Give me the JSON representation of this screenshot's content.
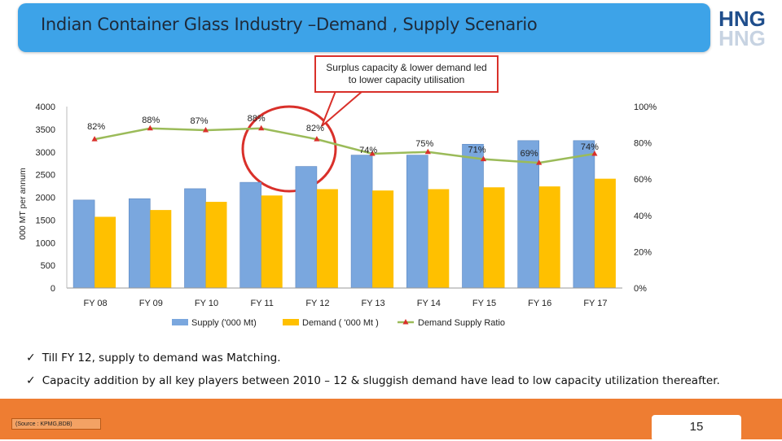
{
  "title": "Indian Container Glass Industry –Demand , Supply Scenario",
  "logo": {
    "top": "HNG",
    "bottom": "HNG"
  },
  "callout": {
    "line1": "Surplus capacity & lower demand led",
    "line2": "to lower capacity utilisation"
  },
  "colors": {
    "supply": "#7aa7de",
    "demand": "#ffc000",
    "ratio": "#9bbb59",
    "ratio_marker": "#d9302a",
    "highlight": "#d9302a"
  },
  "chart_data": {
    "type": "bar",
    "categories": [
      "FY 08",
      "FY 09",
      "FY 10",
      "FY 11",
      "FY 12",
      "FY 13",
      "FY 14",
      "FY 15",
      "FY 16",
      "FY 17"
    ],
    "series": [
      {
        "name": "Supply  ('000 Mt)",
        "type": "bar",
        "axis": "left",
        "values": [
          1940,
          1970,
          2190,
          2330,
          2680,
          2930,
          2930,
          3170,
          3250,
          3250
        ]
      },
      {
        "name": "Demand ( '000 Mt )",
        "type": "bar",
        "axis": "left",
        "values": [
          1570,
          1720,
          1900,
          2040,
          2180,
          2150,
          2180,
          2220,
          2240,
          2410
        ]
      },
      {
        "name": "Demand Supply Ratio",
        "type": "line",
        "axis": "right",
        "values": [
          82,
          88,
          87,
          88,
          82,
          74,
          75,
          71,
          69,
          74
        ],
        "labels": [
          "82%",
          "88%",
          "87%",
          "88%",
          "82%",
          "74%",
          "75%",
          "71%",
          "69%",
          "74%"
        ]
      }
    ],
    "ylabel": "000 MT  per  annum",
    "ylim": [
      0,
      4000
    ],
    "yticks": [
      "0",
      "500",
      "1000",
      "1500",
      "2000",
      "2500",
      "3000",
      "3500",
      "4000"
    ],
    "y2lim": [
      0,
      100
    ],
    "y2ticks": [
      "0%",
      "20%",
      "40%",
      "60%",
      "80%",
      "100%"
    ],
    "legend_position": "bottom"
  },
  "bullets": [
    "Till FY 12, supply to demand was Matching.",
    "Capacity addition by all key players between 2010 – 12 & sluggish demand  have lead to low capacity utilization  thereafter."
  ],
  "bullet_marker": "✓",
  "footer": {
    "source": "(Source : KPMG,BDB)",
    "page": "15"
  }
}
